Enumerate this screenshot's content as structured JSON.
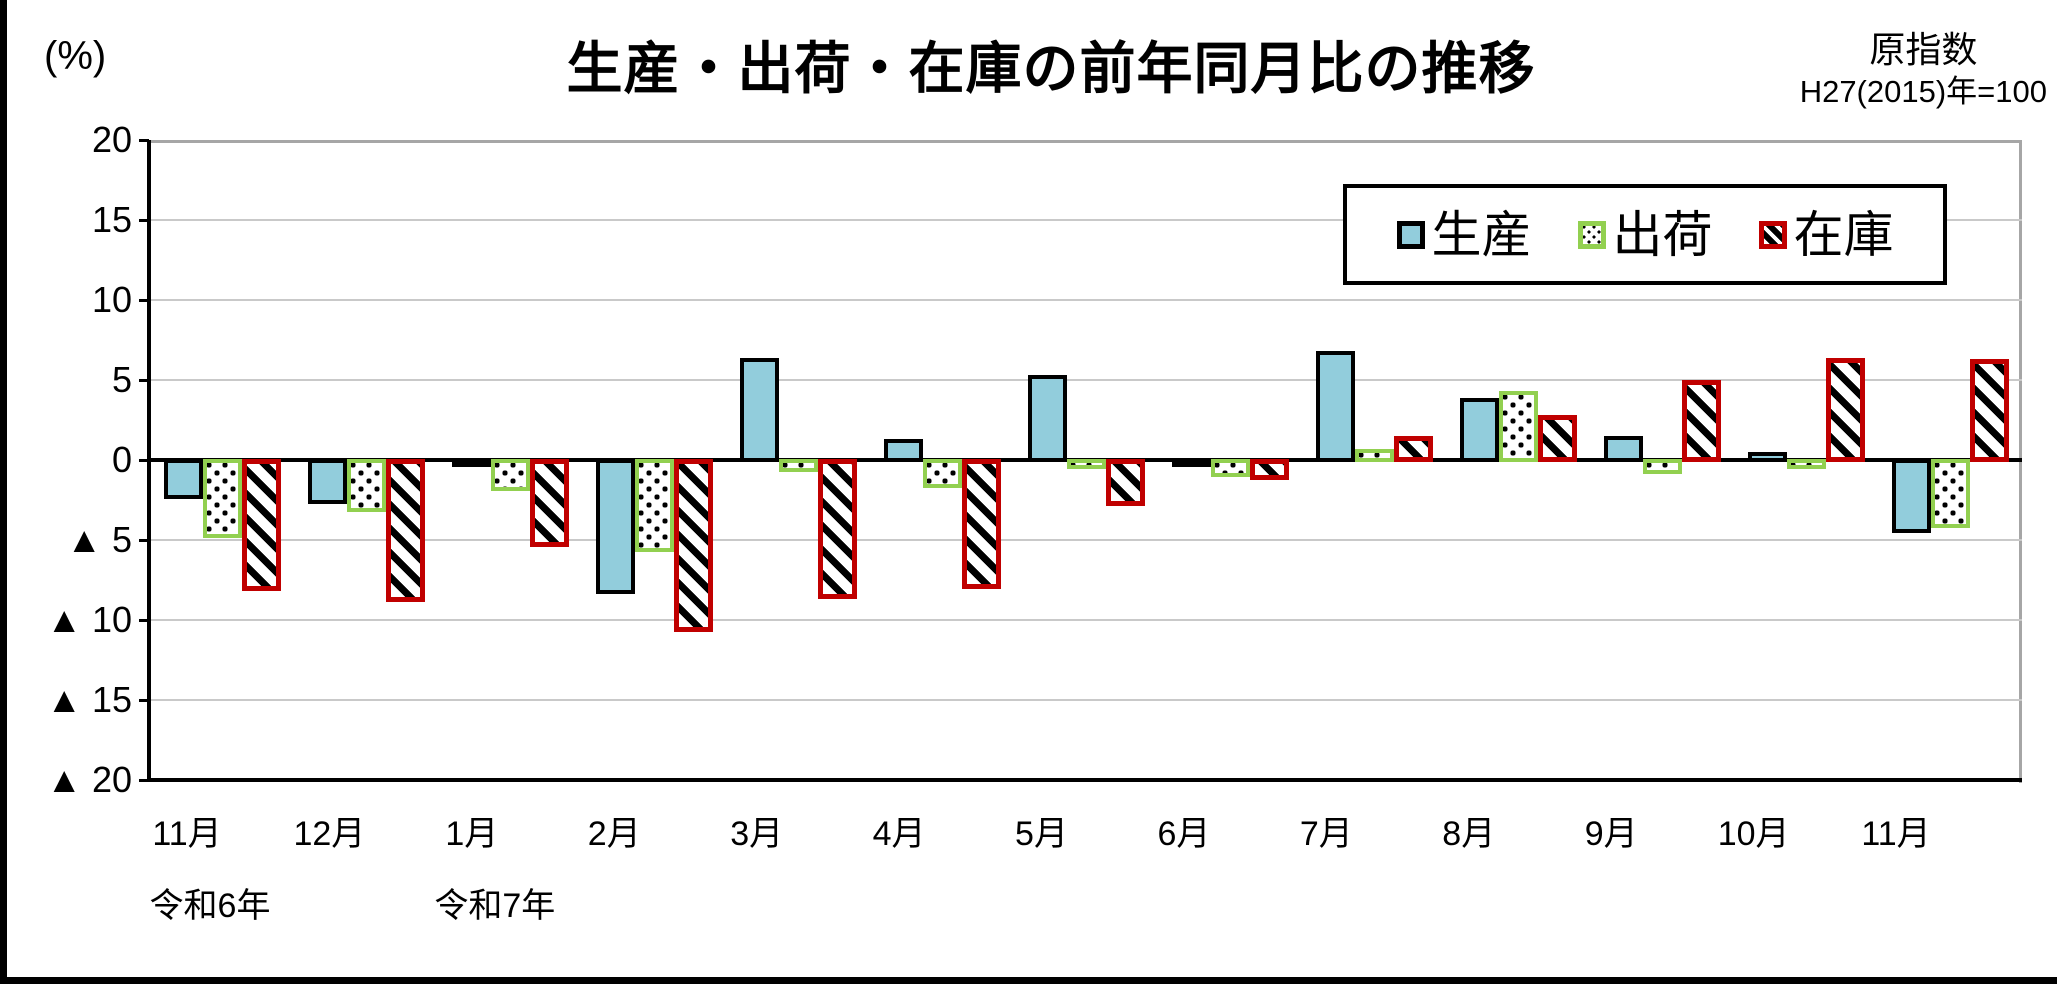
{
  "chart_data": {
    "type": "bar",
    "title": "生産・出荷・在庫の前年同月比の推移",
    "unit_label": "(%)",
    "index_note": [
      "原指数",
      "H27(2015)年=100"
    ],
    "categories": [
      "11月",
      "12月",
      "1月",
      "2月",
      "3月",
      "4月",
      "5月",
      "6月",
      "7月",
      "8月",
      "9月",
      "10月",
      "11月"
    ],
    "era_labels": [
      {
        "text": "令和6年",
        "category_index": 0
      },
      {
        "text": "令和7年",
        "category_index": 2
      }
    ],
    "ylim": [
      -20,
      20
    ],
    "ytick_interval": 5,
    "yticks": [
      {
        "value": 20,
        "label": "20"
      },
      {
        "value": 15,
        "label": "15"
      },
      {
        "value": 10,
        "label": "10"
      },
      {
        "value": 5,
        "label": "5"
      },
      {
        "value": 0,
        "label": "0"
      },
      {
        "value": -5,
        "label": "▲ 5"
      },
      {
        "value": -10,
        "label": "▲ 10"
      },
      {
        "value": -15,
        "label": "▲ 15"
      },
      {
        "value": -20,
        "label": "▲ 20"
      }
    ],
    "grid": true,
    "legend_position": "top-right",
    "colors": {
      "production_fill": "#92CDDC",
      "shipment_border": "#92D050",
      "inventory_border": "#C00000"
    },
    "series": [
      {
        "name": "生産",
        "style": "production",
        "pattern": "solid",
        "values": [
          -2.4,
          -2.7,
          -0.4,
          -8.3,
          6.4,
          1.3,
          5.3,
          -0.3,
          6.8,
          3.9,
          1.5,
          0.5,
          -4.5
        ]
      },
      {
        "name": "出荷",
        "style": "shipment",
        "pattern": "dots",
        "values": [
          -4.8,
          -3.2,
          -1.9,
          -5.7,
          -0.7,
          -1.7,
          -0.5,
          -1.0,
          0.7,
          4.3,
          -0.8,
          -0.5,
          -4.2
        ]
      },
      {
        "name": "在庫",
        "style": "inventory",
        "pattern": "diagonal-stripes",
        "values": [
          -8.1,
          -8.8,
          -5.4,
          -10.7,
          -8.6,
          -8.0,
          -2.8,
          -1.2,
          1.5,
          2.8,
          5.0,
          6.4,
          6.3
        ]
      }
    ]
  }
}
